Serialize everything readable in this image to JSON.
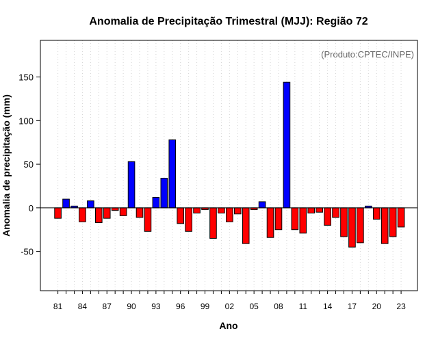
{
  "chart_data": {
    "type": "bar",
    "title": "Anomalia de Precipitação Trimestral (MJJ): Região 72",
    "xlabel": "Ano",
    "ylabel": "Anomalia de precipitação (mm)",
    "credit": "(Produto:CPTEC/INPE)",
    "ylim": [
      -95,
      192
    ],
    "yticks": [
      -50,
      0,
      50,
      100,
      150
    ],
    "yticks_labels": [
      "-50",
      "0",
      "50",
      "100",
      "150"
    ],
    "categories": [
      "81",
      "82",
      "83",
      "84",
      "85",
      "86",
      "87",
      "88",
      "89",
      "90",
      "91",
      "92",
      "93",
      "94",
      "95",
      "96",
      "97",
      "98",
      "99",
      "00",
      "01",
      "02",
      "03",
      "04",
      "05",
      "06",
      "07",
      "08",
      "09",
      "10",
      "11",
      "12",
      "13",
      "14",
      "15",
      "16",
      "17",
      "18",
      "19",
      "20",
      "21",
      "22",
      "23"
    ],
    "xtick_labels": [
      "81",
      "84",
      "87",
      "90",
      "93",
      "96",
      "99",
      "02",
      "05",
      "08",
      "11",
      "14",
      "17",
      "20",
      "23"
    ],
    "values": [
      -12,
      10,
      2,
      -16,
      8,
      -17,
      -12,
      -3,
      -9,
      53,
      -11,
      -27,
      12,
      34,
      78,
      -18,
      -27,
      -6,
      -2,
      -35,
      -6,
      -16,
      -7,
      -41,
      -2,
      7,
      -34,
      -25,
      144,
      -25,
      -29,
      -6,
      -5,
      -20,
      -11,
      -33,
      -45,
      -40,
      2,
      -13,
      -41,
      -33,
      -22
    ],
    "colors": {
      "positive": "#0000ff",
      "negative": "#ff0000",
      "gridline": "#d3d3d3",
      "zero_line": "#000000"
    }
  }
}
